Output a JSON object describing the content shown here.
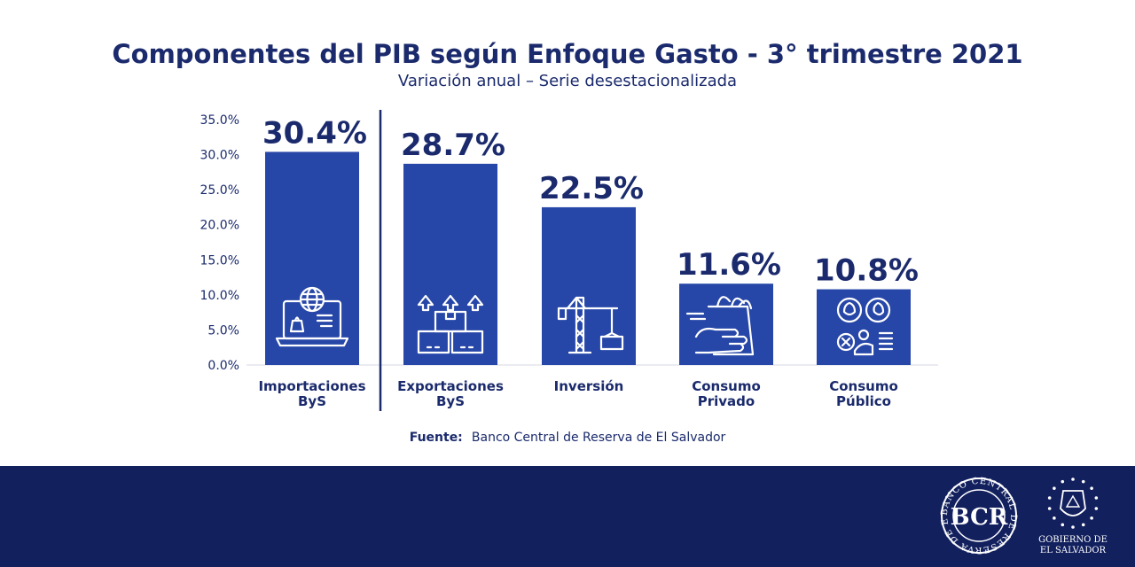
{
  "chart_data": {
    "type": "bar",
    "title": "Componentes del PIB según Enfoque Gasto - 3° trimestre 2021",
    "subtitle": "Variación anual – Serie desestacionalizada",
    "categories": [
      [
        "Importaciones",
        "ByS"
      ],
      [
        "Exportaciones",
        "ByS"
      ],
      [
        "Inversión"
      ],
      [
        "Consumo",
        "Privado"
      ],
      [
        "Consumo",
        "Público"
      ]
    ],
    "values": [
      30.4,
      28.7,
      22.5,
      11.6,
      10.8
    ],
    "value_labels": [
      "30.4%",
      "28.7%",
      "22.5%",
      "11.6%",
      "10.8%"
    ],
    "icons": [
      "laptop-globe-icon",
      "boxes-export-icon",
      "crane-icon",
      "grocery-hand-icon",
      "people-icon"
    ],
    "ylim": [
      0,
      35
    ],
    "yticks": [
      "0.0%",
      "5.0%",
      "10.0%",
      "15.0%",
      "20.0%",
      "25.0%",
      "30.0%",
      "35.0%"
    ],
    "bar_color": "#2747a8",
    "text_color": "#1a2a6c",
    "grid": false,
    "separator_after_index": 0
  },
  "source": {
    "label": "Fuente:",
    "text": "Banco Central de Reserva de El Salvador"
  },
  "footer": {
    "background": "#12205e",
    "bcr_logo_text": "BANCO CENTRAL DE RESERVA DE EL SALVADOR",
    "bcr_logo_mark": "BCR",
    "gov_logo_line1": "GOBIERNO DE",
    "gov_logo_line2": "EL SALVADOR"
  }
}
